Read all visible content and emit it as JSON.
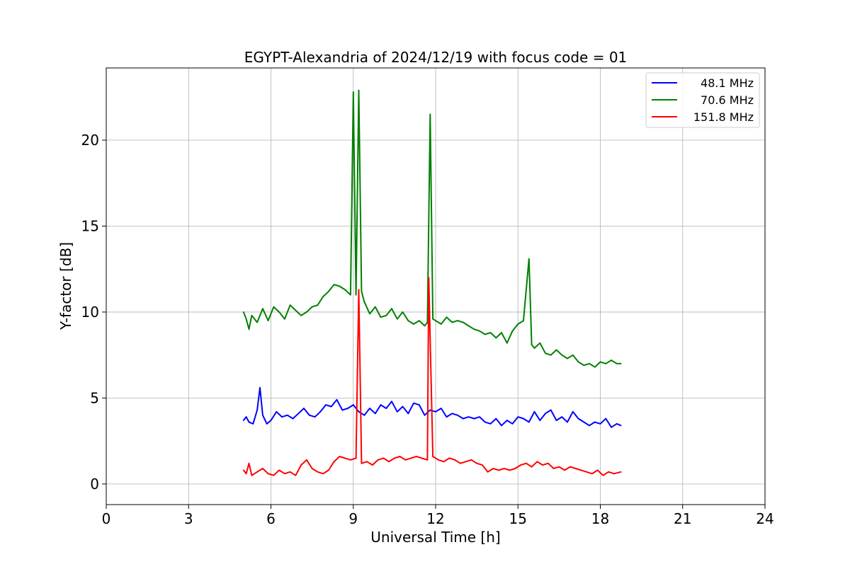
{
  "chart_data": {
    "type": "line",
    "title": "EGYPT-Alexandria of 2024/12/19 with focus code = 01",
    "xlabel": "Universal Time [h]",
    "ylabel": "Y-factor [dB]",
    "xlim": [
      0,
      24
    ],
    "ylim": [
      -1.2,
      24.2
    ],
    "xticks": [
      0,
      3,
      6,
      9,
      12,
      15,
      18,
      21,
      24
    ],
    "yticks": [
      0,
      5,
      10,
      15,
      20
    ],
    "grid": true,
    "legend_position": "upper right",
    "series": [
      {
        "name": "48.1 MHz",
        "color": "#0000ff",
        "x": [
          5.0,
          5.1,
          5.2,
          5.35,
          5.5,
          5.6,
          5.7,
          5.85,
          6.0,
          6.2,
          6.4,
          6.6,
          6.8,
          7.0,
          7.2,
          7.4,
          7.6,
          7.8,
          8.0,
          8.2,
          8.4,
          8.6,
          8.8,
          9.0,
          9.2,
          9.4,
          9.6,
          9.8,
          10.0,
          10.2,
          10.4,
          10.6,
          10.8,
          11.0,
          11.2,
          11.4,
          11.6,
          11.8,
          12.0,
          12.2,
          12.4,
          12.6,
          12.8,
          13.0,
          13.2,
          13.4,
          13.6,
          13.8,
          14.0,
          14.2,
          14.4,
          14.6,
          14.8,
          15.0,
          15.2,
          15.4,
          15.6,
          15.8,
          16.0,
          16.2,
          16.4,
          16.6,
          16.8,
          17.0,
          17.2,
          17.4,
          17.6,
          17.8,
          18.0,
          18.2,
          18.4,
          18.6,
          18.75
        ],
        "y": [
          3.7,
          3.9,
          3.6,
          3.5,
          4.3,
          5.6,
          4.0,
          3.5,
          3.7,
          4.2,
          3.9,
          4.0,
          3.8,
          4.1,
          4.4,
          4.0,
          3.9,
          4.2,
          4.6,
          4.5,
          4.9,
          4.3,
          4.4,
          4.6,
          4.2,
          4.0,
          4.4,
          4.1,
          4.6,
          4.4,
          4.8,
          4.2,
          4.5,
          4.1,
          4.7,
          4.6,
          4.0,
          4.3,
          4.2,
          4.4,
          3.9,
          4.1,
          4.0,
          3.8,
          3.9,
          3.8,
          3.9,
          3.6,
          3.5,
          3.8,
          3.4,
          3.7,
          3.5,
          3.9,
          3.8,
          3.6,
          4.2,
          3.7,
          4.1,
          4.3,
          3.7,
          3.9,
          3.6,
          4.2,
          3.8,
          3.6,
          3.4,
          3.6,
          3.5,
          3.8,
          3.3,
          3.5,
          3.4
        ]
      },
      {
        "name": "70.6 MHz",
        "color": "#008000",
        "x": [
          5.0,
          5.1,
          5.2,
          5.3,
          5.5,
          5.7,
          5.9,
          6.1,
          6.3,
          6.5,
          6.7,
          6.9,
          7.1,
          7.3,
          7.5,
          7.7,
          7.9,
          8.1,
          8.3,
          8.5,
          8.7,
          8.9,
          9.0,
          9.1,
          9.2,
          9.3,
          9.4,
          9.6,
          9.8,
          10.0,
          10.2,
          10.4,
          10.6,
          10.8,
          11.0,
          11.2,
          11.4,
          11.6,
          11.7,
          11.8,
          11.9,
          12.0,
          12.2,
          12.4,
          12.6,
          12.8,
          13.0,
          13.2,
          13.4,
          13.6,
          13.8,
          14.0,
          14.2,
          14.4,
          14.6,
          14.8,
          15.0,
          15.2,
          15.4,
          15.5,
          15.6,
          15.8,
          16.0,
          16.2,
          16.4,
          16.6,
          16.8,
          17.0,
          17.2,
          17.4,
          17.6,
          17.8,
          18.0,
          18.2,
          18.4,
          18.6,
          18.75
        ],
        "y": [
          10.0,
          9.6,
          9.0,
          9.8,
          9.4,
          10.2,
          9.5,
          10.3,
          10.0,
          9.6,
          10.4,
          10.1,
          9.8,
          10.0,
          10.3,
          10.4,
          10.9,
          11.2,
          11.6,
          11.5,
          11.3,
          11.0,
          22.8,
          11.0,
          22.9,
          11.2,
          10.6,
          9.9,
          10.3,
          9.7,
          9.8,
          10.2,
          9.6,
          10.0,
          9.5,
          9.3,
          9.5,
          9.2,
          9.4,
          21.5,
          9.6,
          9.5,
          9.3,
          9.7,
          9.4,
          9.5,
          9.4,
          9.2,
          9.0,
          8.9,
          8.7,
          8.8,
          8.5,
          8.8,
          8.2,
          8.9,
          9.3,
          9.5,
          13.1,
          8.1,
          7.9,
          8.2,
          7.6,
          7.5,
          7.8,
          7.5,
          7.3,
          7.5,
          7.1,
          6.9,
          7.0,
          6.8,
          7.1,
          7.0,
          7.2,
          7.0,
          7.0
        ]
      },
      {
        "name": "151.8 MHz",
        "color": "#ff0000",
        "x": [
          5.0,
          5.1,
          5.2,
          5.3,
          5.5,
          5.7,
          5.9,
          6.1,
          6.3,
          6.5,
          6.7,
          6.9,
          7.1,
          7.3,
          7.5,
          7.7,
          7.9,
          8.1,
          8.3,
          8.5,
          8.7,
          8.9,
          9.1,
          9.2,
          9.3,
          9.5,
          9.7,
          9.9,
          10.1,
          10.3,
          10.5,
          10.7,
          10.9,
          11.1,
          11.3,
          11.5,
          11.7,
          11.75,
          11.9,
          12.1,
          12.3,
          12.5,
          12.7,
          12.9,
          13.1,
          13.3,
          13.5,
          13.7,
          13.9,
          14.1,
          14.3,
          14.5,
          14.7,
          14.9,
          15.1,
          15.3,
          15.5,
          15.7,
          15.9,
          16.1,
          16.3,
          16.5,
          16.7,
          16.9,
          17.1,
          17.3,
          17.5,
          17.7,
          17.9,
          18.1,
          18.3,
          18.5,
          18.75
        ],
        "y": [
          0.8,
          0.6,
          1.2,
          0.5,
          0.7,
          0.9,
          0.6,
          0.5,
          0.8,
          0.6,
          0.7,
          0.5,
          1.1,
          1.4,
          0.9,
          0.7,
          0.6,
          0.8,
          1.3,
          1.6,
          1.5,
          1.4,
          1.5,
          11.3,
          1.2,
          1.3,
          1.1,
          1.4,
          1.5,
          1.3,
          1.5,
          1.6,
          1.4,
          1.5,
          1.6,
          1.5,
          1.4,
          12.0,
          1.6,
          1.4,
          1.3,
          1.5,
          1.4,
          1.2,
          1.3,
          1.4,
          1.2,
          1.1,
          0.7,
          0.9,
          0.8,
          0.9,
          0.8,
          0.9,
          1.1,
          1.2,
          1.0,
          1.3,
          1.1,
          1.2,
          0.9,
          1.0,
          0.8,
          1.0,
          0.9,
          0.8,
          0.7,
          0.6,
          0.8,
          0.5,
          0.7,
          0.6,
          0.7
        ]
      }
    ]
  }
}
